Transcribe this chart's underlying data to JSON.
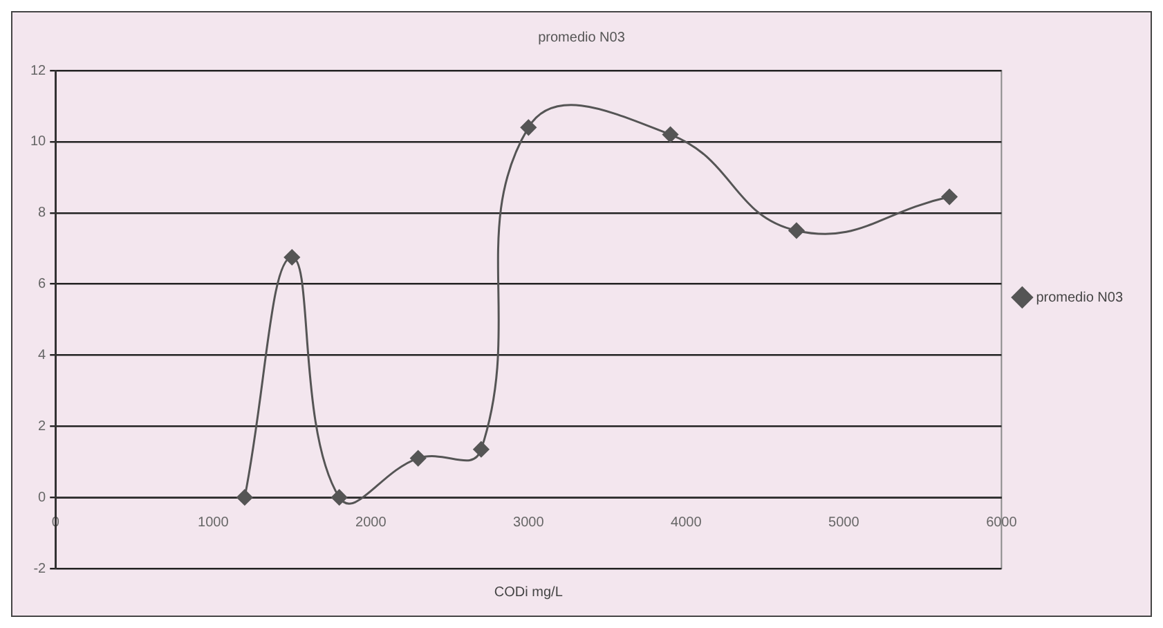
{
  "chart_data": {
    "type": "line",
    "title": "promedio N03",
    "xlabel": "CODi mg/L",
    "x": [
      1200,
      1500,
      1800,
      2300,
      2700,
      3000,
      3900,
      4700,
      5670
    ],
    "series": [
      {
        "name": "promedio N03",
        "color": "#555555",
        "values": [
          0,
          6.75,
          0,
          1.1,
          1.35,
          10.4,
          10.2,
          7.5,
          8.45
        ]
      }
    ],
    "xlim": [
      0,
      6000
    ],
    "xticks": [
      0,
      1000,
      2000,
      3000,
      4000,
      5000,
      6000
    ],
    "ylim": [
      -2,
      12
    ],
    "yticks": [
      -2,
      0,
      2,
      4,
      6,
      8,
      10,
      12
    ],
    "grid": "y",
    "legend": "right",
    "marker": "diamond",
    "line_style": "solid"
  }
}
